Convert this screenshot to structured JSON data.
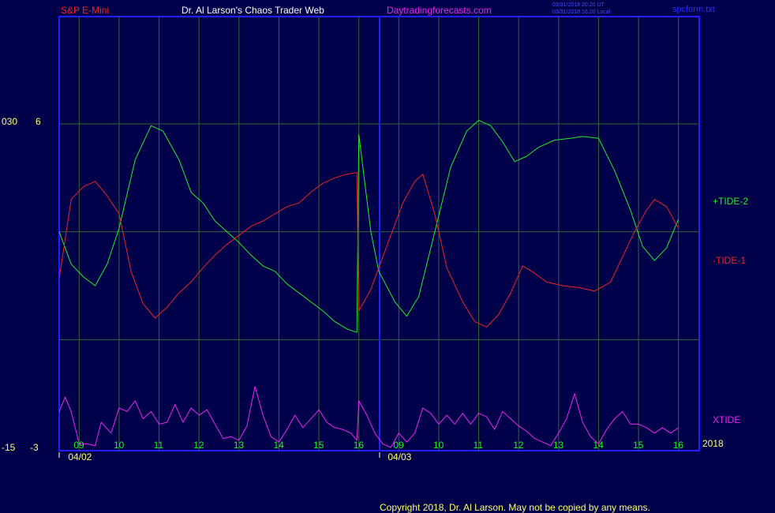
{
  "header": {
    "instrument": "S&P E-Mini",
    "author": "Dr. Al Larson's Chaos Trader Web",
    "site": "Daytradingforecasts.com",
    "stamp_line1": "03/31/2018 20:20 UT",
    "stamp_line2": "03/31/2018 16:20 Local",
    "filename": "spcform.txt"
  },
  "footer": {
    "copyright": "Copyright 2018, Dr. Al Larson. May not be copied by any means.",
    "year": "2018"
  },
  "colors": {
    "background": "#00004a",
    "frame": "#2020ff",
    "grid": "#336633",
    "tide_plus": "#22ee22",
    "tide_minus": "#ee2222",
    "xtide": "#ee22ee",
    "label_yellow": "#ffff66"
  },
  "chart_data": {
    "type": "line",
    "axes": {
      "left_labels": {
        "top_outer": "030",
        "top_inner": "6",
        "bottom_outer": "-15",
        "bottom_inner": "-3"
      },
      "ylim_inner": [
        -3,
        6
      ]
    },
    "x_ticks": [
      {
        "label": "09",
        "t": 0.5
      },
      {
        "label": "10",
        "t": 1.5
      },
      {
        "label": "11",
        "t": 2.5
      },
      {
        "label": "12",
        "t": 3.5
      },
      {
        "label": "13",
        "t": 4.5
      },
      {
        "label": "14",
        "t": 5.5
      },
      {
        "label": "15",
        "t": 6.5
      },
      {
        "label": "16",
        "t": 7.5
      },
      {
        "label": "09",
        "t": 8.5
      },
      {
        "label": "10",
        "t": 9.5
      },
      {
        "label": "11",
        "t": 10.5
      },
      {
        "label": "12",
        "t": 11.5
      },
      {
        "label": "13",
        "t": 12.5
      },
      {
        "label": "14",
        "t": 13.5
      },
      {
        "label": "15",
        "t": 14.5
      },
      {
        "label": "16",
        "t": 15.5
      }
    ],
    "dates": [
      {
        "label": "04/02",
        "t": 0.5
      },
      {
        "label": "04/03",
        "t": 8.5
      }
    ],
    "series": [
      {
        "name": "+TIDE-2",
        "color": "#22ee22",
        "points": [
          [
            0,
            3.0
          ],
          [
            0.3,
            2.1
          ],
          [
            0.6,
            1.75
          ],
          [
            0.9,
            1.5
          ],
          [
            1.2,
            2.1
          ],
          [
            1.5,
            3.1
          ],
          [
            1.9,
            5.0
          ],
          [
            2.3,
            5.95
          ],
          [
            2.6,
            5.8
          ],
          [
            3.0,
            5.0
          ],
          [
            3.3,
            4.1
          ],
          [
            3.6,
            3.8
          ],
          [
            3.9,
            3.3
          ],
          [
            4.2,
            3.0
          ],
          [
            4.5,
            2.7
          ],
          [
            4.8,
            2.35
          ],
          [
            5.1,
            2.05
          ],
          [
            5.4,
            1.9
          ],
          [
            5.7,
            1.55
          ],
          [
            6.0,
            1.3
          ],
          [
            6.3,
            1.05
          ],
          [
            6.6,
            0.8
          ],
          [
            6.9,
            0.5
          ],
          [
            7.2,
            0.3
          ],
          [
            7.45,
            0.2
          ],
          [
            7.5,
            5.7
          ],
          [
            7.8,
            3.0
          ],
          [
            8.0,
            1.9
          ],
          [
            8.4,
            1.05
          ],
          [
            8.7,
            0.65
          ],
          [
            9.0,
            1.2
          ],
          [
            9.4,
            3.0
          ],
          [
            9.8,
            4.8
          ],
          [
            10.2,
            5.8
          ],
          [
            10.5,
            6.1
          ],
          [
            10.8,
            5.95
          ],
          [
            11.1,
            5.5
          ],
          [
            11.4,
            4.95
          ],
          [
            11.7,
            5.1
          ],
          [
            12.0,
            5.35
          ],
          [
            12.4,
            5.55
          ],
          [
            12.8,
            5.6
          ],
          [
            13.1,
            5.65
          ],
          [
            13.5,
            5.6
          ],
          [
            13.9,
            4.7
          ],
          [
            14.3,
            3.6
          ],
          [
            14.6,
            2.6
          ],
          [
            14.9,
            2.2
          ],
          [
            15.2,
            2.55
          ],
          [
            15.5,
            3.35
          ]
        ]
      },
      {
        "name": "-TIDE-1",
        "color": "#ee2222",
        "points": [
          [
            0,
            1.7
          ],
          [
            0.3,
            3.9
          ],
          [
            0.6,
            4.25
          ],
          [
            0.9,
            4.4
          ],
          [
            1.2,
            4.0
          ],
          [
            1.5,
            3.5
          ],
          [
            1.8,
            1.9
          ],
          [
            2.1,
            1.0
          ],
          [
            2.4,
            0.6
          ],
          [
            2.7,
            0.9
          ],
          [
            3.0,
            1.3
          ],
          [
            3.3,
            1.6
          ],
          [
            3.6,
            2.0
          ],
          [
            3.9,
            2.35
          ],
          [
            4.2,
            2.65
          ],
          [
            4.5,
            2.9
          ],
          [
            4.8,
            3.15
          ],
          [
            5.1,
            3.3
          ],
          [
            5.4,
            3.5
          ],
          [
            5.7,
            3.7
          ],
          [
            6.0,
            3.8
          ],
          [
            6.3,
            4.1
          ],
          [
            6.6,
            4.35
          ],
          [
            6.9,
            4.5
          ],
          [
            7.2,
            4.6
          ],
          [
            7.45,
            4.65
          ],
          [
            7.5,
            0.8
          ],
          [
            7.8,
            1.4
          ],
          [
            8.2,
            2.6
          ],
          [
            8.6,
            3.8
          ],
          [
            8.9,
            4.4
          ],
          [
            9.1,
            4.6
          ],
          [
            9.4,
            3.5
          ],
          [
            9.7,
            2.0
          ],
          [
            10.1,
            1.05
          ],
          [
            10.4,
            0.5
          ],
          [
            10.7,
            0.35
          ],
          [
            11.0,
            0.7
          ],
          [
            11.3,
            1.3
          ],
          [
            11.6,
            2.05
          ],
          [
            11.9,
            1.85
          ],
          [
            12.2,
            1.6
          ],
          [
            12.6,
            1.5
          ],
          [
            13.0,
            1.45
          ],
          [
            13.4,
            1.35
          ],
          [
            13.8,
            1.6
          ],
          [
            14.1,
            2.3
          ],
          [
            14.4,
            3.0
          ],
          [
            14.7,
            3.6
          ],
          [
            14.9,
            3.9
          ],
          [
            15.2,
            3.7
          ],
          [
            15.5,
            3.1
          ]
        ]
      },
      {
        "name": "XTIDE",
        "color": "#ee22ee",
        "points": [
          [
            0,
            -2.0
          ],
          [
            0.15,
            -1.6
          ],
          [
            0.3,
            -2.0
          ],
          [
            0.5,
            -2.9
          ],
          [
            0.7,
            -2.9
          ],
          [
            0.9,
            -2.95
          ],
          [
            1.05,
            -2.3
          ],
          [
            1.3,
            -2.6
          ],
          [
            1.5,
            -1.9
          ],
          [
            1.7,
            -2.0
          ],
          [
            1.9,
            -1.7
          ],
          [
            2.1,
            -2.2
          ],
          [
            2.3,
            -2.0
          ],
          [
            2.5,
            -2.35
          ],
          [
            2.7,
            -2.3
          ],
          [
            2.9,
            -1.8
          ],
          [
            3.1,
            -2.3
          ],
          [
            3.3,
            -1.9
          ],
          [
            3.5,
            -2.1
          ],
          [
            3.7,
            -1.95
          ],
          [
            3.9,
            -2.35
          ],
          [
            4.1,
            -2.75
          ],
          [
            4.3,
            -2.7
          ],
          [
            4.5,
            -2.8
          ],
          [
            4.7,
            -2.4
          ],
          [
            4.9,
            -1.3
          ],
          [
            5.1,
            -2.1
          ],
          [
            5.3,
            -2.7
          ],
          [
            5.5,
            -2.85
          ],
          [
            5.7,
            -2.5
          ],
          [
            5.9,
            -2.1
          ],
          [
            6.1,
            -2.45
          ],
          [
            6.3,
            -2.2
          ],
          [
            6.5,
            -1.95
          ],
          [
            6.7,
            -2.3
          ],
          [
            6.9,
            -2.45
          ],
          [
            7.1,
            -2.5
          ],
          [
            7.3,
            -2.6
          ],
          [
            7.45,
            -2.8
          ],
          [
            7.5,
            -1.7
          ],
          [
            7.7,
            -2.1
          ],
          [
            7.9,
            -2.6
          ],
          [
            8.1,
            -2.9
          ],
          [
            8.3,
            -3.0
          ],
          [
            8.5,
            -2.6
          ],
          [
            8.7,
            -2.85
          ],
          [
            8.9,
            -2.6
          ],
          [
            9.1,
            -1.9
          ],
          [
            9.3,
            -2.05
          ],
          [
            9.5,
            -2.35
          ],
          [
            9.7,
            -2.1
          ],
          [
            9.9,
            -2.35
          ],
          [
            10.1,
            -2.05
          ],
          [
            10.3,
            -2.35
          ],
          [
            10.5,
            -2.05
          ],
          [
            10.7,
            -2.15
          ],
          [
            10.9,
            -2.5
          ],
          [
            11.1,
            -2.0
          ],
          [
            11.3,
            -2.2
          ],
          [
            11.5,
            -2.4
          ],
          [
            11.7,
            -2.55
          ],
          [
            11.9,
            -2.75
          ],
          [
            12.1,
            -2.85
          ],
          [
            12.3,
            -2.95
          ],
          [
            12.5,
            -2.6
          ],
          [
            12.7,
            -2.2
          ],
          [
            12.9,
            -1.5
          ],
          [
            13.1,
            -2.3
          ],
          [
            13.3,
            -2.7
          ],
          [
            13.5,
            -2.9
          ],
          [
            13.7,
            -2.5
          ],
          [
            13.9,
            -2.2
          ],
          [
            14.1,
            -2.0
          ],
          [
            14.3,
            -2.35
          ],
          [
            14.5,
            -2.35
          ],
          [
            14.7,
            -2.45
          ],
          [
            14.9,
            -2.6
          ],
          [
            15.1,
            -2.45
          ],
          [
            15.3,
            -2.6
          ],
          [
            15.5,
            -2.45
          ]
        ]
      }
    ]
  }
}
